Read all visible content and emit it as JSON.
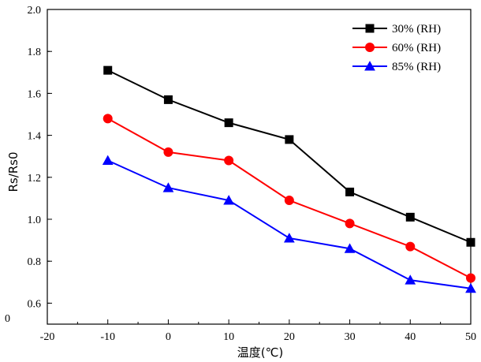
{
  "chart_data": {
    "type": "line",
    "xlabel": "温度(℃)",
    "ylabel": "Rs/Rs0",
    "xlim": [
      -20,
      50
    ],
    "ylim": [
      0.5,
      2.0
    ],
    "x_ticks": [
      -20,
      -10,
      0,
      10,
      20,
      30,
      40,
      50
    ],
    "y_ticks": [
      0.6,
      0.8,
      1.0,
      1.2,
      1.4,
      1.6,
      1.8,
      2.0
    ],
    "y_tick_labels": [
      "0.6",
      "0.8",
      "1.0",
      "1.2",
      "1.4",
      "1.6",
      "1.8",
      "2.0"
    ],
    "grid": false,
    "legend_position": "top-right",
    "x": [
      -10,
      0,
      10,
      20,
      30,
      40,
      50
    ],
    "series": [
      {
        "name": "30% (RH)",
        "color": "#000000",
        "marker": "square",
        "values": [
          1.71,
          1.57,
          1.46,
          1.38,
          1.13,
          1.01,
          0.89
        ]
      },
      {
        "name": "60% (RH)",
        "color": "#ff0000",
        "marker": "circle",
        "values": [
          1.48,
          1.32,
          1.28,
          1.09,
          0.98,
          0.87,
          0.72
        ]
      },
      {
        "name": "85% (RH)",
        "color": "#0000ff",
        "marker": "triangle",
        "values": [
          1.28,
          1.15,
          1.09,
          0.91,
          0.86,
          0.71,
          0.67
        ]
      }
    ],
    "stray_label": "0"
  }
}
